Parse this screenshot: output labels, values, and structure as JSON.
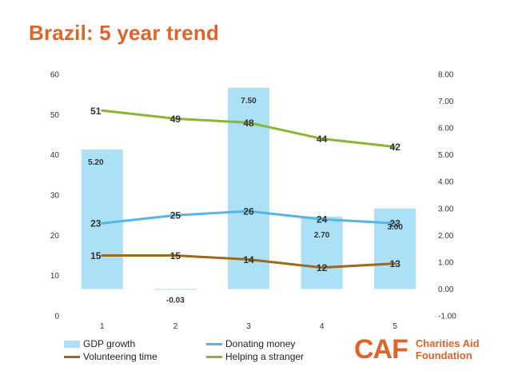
{
  "chart_data": {
    "type": "bar+line",
    "title": "Brazil: 5 year trend",
    "categories": [
      "1",
      "2",
      "3",
      "4",
      "5"
    ],
    "left_axis": {
      "min": 0,
      "max": 60,
      "ticks": [
        "0",
        "10",
        "20",
        "30",
        "40",
        "50",
        "60"
      ]
    },
    "right_axis": {
      "min": -1.0,
      "max": 8.0,
      "ticks": [
        "-1.00",
        "0.00",
        "1.00",
        "2.00",
        "3.00",
        "4.00",
        "5.00",
        "6.00",
        "7.00",
        "8.00"
      ]
    },
    "bar_series": {
      "name": "GDP growth",
      "axis": "right",
      "color": "#ace0f7",
      "values": [
        5.2,
        -0.03,
        7.5,
        2.7,
        3.0
      ],
      "labels": [
        "5.20",
        "-0.03",
        "7.50",
        "2.70",
        "3.00"
      ]
    },
    "line_series": [
      {
        "name": "Donating money",
        "axis": "left",
        "color": "#55b5e6",
        "values": [
          23,
          25,
          26,
          24,
          23
        ],
        "labels": [
          "23",
          "25",
          "26",
          "24",
          "23"
        ]
      },
      {
        "name": "Volunteering time",
        "axis": "left",
        "color": "#9a6a1c",
        "values": [
          15,
          15,
          14,
          12,
          13
        ],
        "labels": [
          "15",
          "15",
          "14",
          "12",
          "13"
        ]
      },
      {
        "name": "Helping a stranger",
        "axis": "left",
        "color": "#8ab631",
        "values": [
          51,
          49,
          48,
          44,
          42
        ],
        "labels": [
          "51",
          "49",
          "48",
          "44",
          "42"
        ]
      }
    ],
    "legend_position": "bottom-left"
  },
  "logo": {
    "mark": "CAF",
    "line1": "Charities Aid",
    "line2": "Foundation"
  }
}
